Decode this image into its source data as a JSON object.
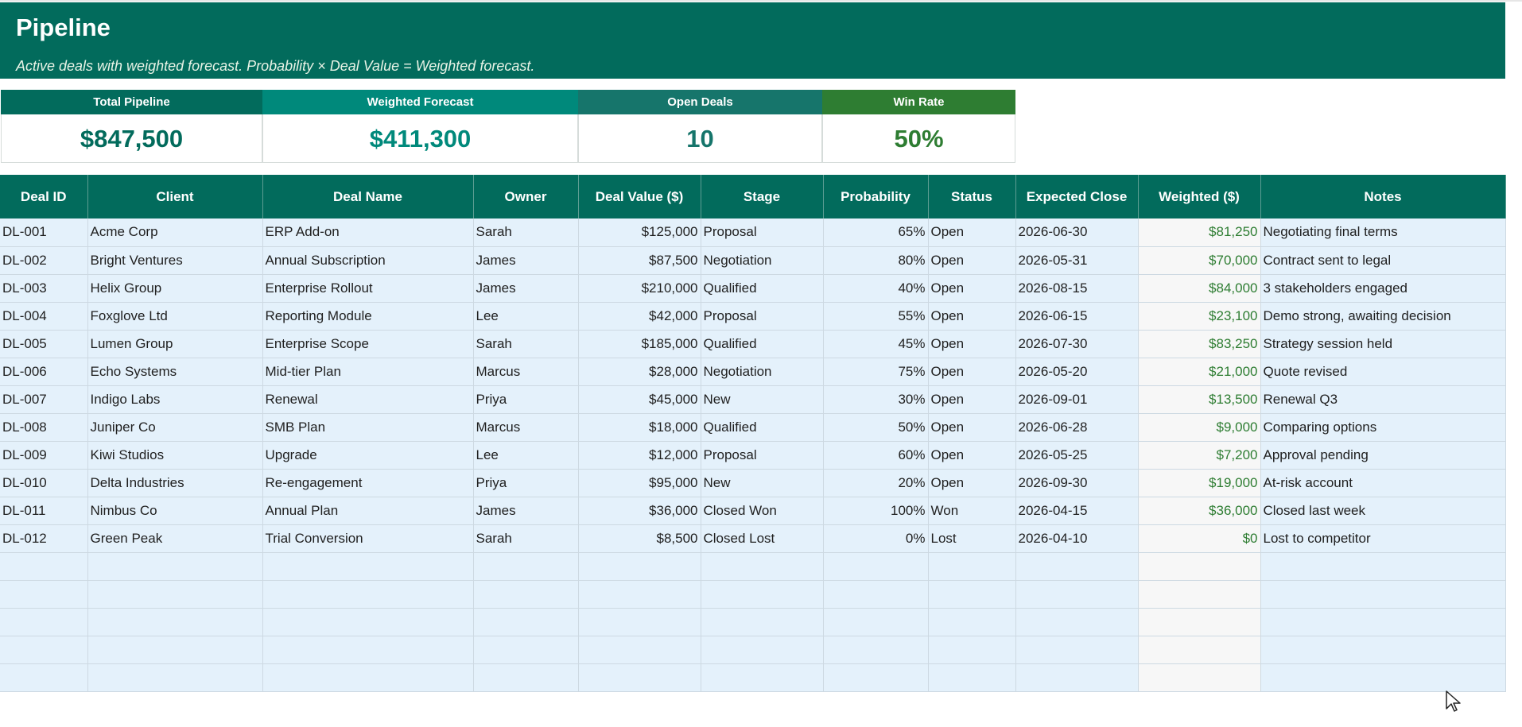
{
  "title": "Pipeline",
  "subtitle": "Active deals with weighted forecast. Probability × Deal Value = Weighted forecast.",
  "kpis": [
    {
      "label": "Total Pipeline",
      "value": "$847,500",
      "label_bg": "#026b5c",
      "value_color": "#026b5c"
    },
    {
      "label": "Weighted Forecast",
      "value": "$411,300",
      "label_bg": "#00897b",
      "value_color": "#00897b"
    },
    {
      "label": "Open Deals",
      "value": "10",
      "label_bg": "#16756b",
      "value_color": "#16756b"
    },
    {
      "label": "Win Rate",
      "value": "50%",
      "label_bg": "#2e7d32",
      "value_color": "#2e7d32"
    }
  ],
  "columns": [
    "Deal ID",
    "Client",
    "Deal Name",
    "Owner",
    "Deal Value ($)",
    "Stage",
    "Probability",
    "Status",
    "Expected Close",
    "Weighted ($)",
    "Notes"
  ],
  "rows": [
    [
      "DL-001",
      "Acme Corp",
      "ERP Add-on",
      "Sarah",
      "$125,000",
      "Proposal",
      "65%",
      "Open",
      "2026-06-30",
      "$81,250",
      "Negotiating final terms"
    ],
    [
      "DL-002",
      "Bright Ventures",
      "Annual Subscription",
      "James",
      "$87,500",
      "Negotiation",
      "80%",
      "Open",
      "2026-05-31",
      "$70,000",
      "Contract sent to legal"
    ],
    [
      "DL-003",
      "Helix Group",
      "Enterprise Rollout",
      "James",
      "$210,000",
      "Qualified",
      "40%",
      "Open",
      "2026-08-15",
      "$84,000",
      "3 stakeholders engaged"
    ],
    [
      "DL-004",
      "Foxglove Ltd",
      "Reporting Module",
      "Lee",
      "$42,000",
      "Proposal",
      "55%",
      "Open",
      "2026-06-15",
      "$23,100",
      "Demo strong, awaiting decision"
    ],
    [
      "DL-005",
      "Lumen Group",
      "Enterprise Scope",
      "Sarah",
      "$185,000",
      "Qualified",
      "45%",
      "Open",
      "2026-07-30",
      "$83,250",
      "Strategy session held"
    ],
    [
      "DL-006",
      "Echo Systems",
      "Mid-tier Plan",
      "Marcus",
      "$28,000",
      "Negotiation",
      "75%",
      "Open",
      "2026-05-20",
      "$21,000",
      "Quote revised"
    ],
    [
      "DL-007",
      "Indigo Labs",
      "Renewal",
      "Priya",
      "$45,000",
      "New",
      "30%",
      "Open",
      "2026-09-01",
      "$13,500",
      "Renewal Q3"
    ],
    [
      "DL-008",
      "Juniper Co",
      "SMB Plan",
      "Marcus",
      "$18,000",
      "Qualified",
      "50%",
      "Open",
      "2026-06-28",
      "$9,000",
      "Comparing options"
    ],
    [
      "DL-009",
      "Kiwi Studios",
      "Upgrade",
      "Lee",
      "$12,000",
      "Proposal",
      "60%",
      "Open",
      "2026-05-25",
      "$7,200",
      "Approval pending"
    ],
    [
      "DL-010",
      "Delta Industries",
      "Re-engagement",
      "Priya",
      "$95,000",
      "New",
      "20%",
      "Open",
      "2026-09-30",
      "$19,000",
      "At-risk account"
    ],
    [
      "DL-011",
      "Nimbus Co",
      "Annual Plan",
      "James",
      "$36,000",
      "Closed Won",
      "100%",
      "Won",
      "2026-04-15",
      "$36,000",
      "Closed last week"
    ],
    [
      "DL-012",
      "Green Peak",
      "Trial Conversion",
      "Sarah",
      "$8,500",
      "Closed Lost",
      "0%",
      "Lost",
      "2026-04-10",
      "$0",
      "Lost to competitor"
    ]
  ],
  "blank_rows": 5
}
